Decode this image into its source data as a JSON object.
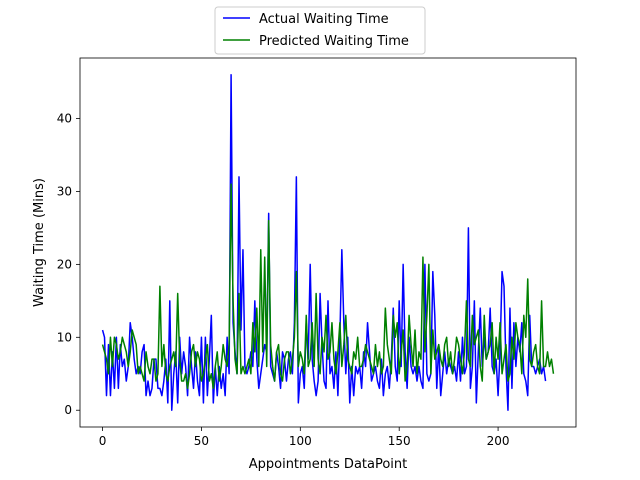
{
  "chart_data": {
    "type": "line",
    "title": "",
    "xlabel": "Appointments DataPoint",
    "ylabel": "Waiting Time (Mins)",
    "xlim": [
      -11.4,
      239.4
    ],
    "ylim": [
      -2.3,
      48.3
    ],
    "xticks": [
      0,
      50,
      100,
      150,
      200
    ],
    "yticks": [
      0,
      10,
      20,
      30,
      40
    ],
    "grid": false,
    "legend_position": "top-center",
    "series": [
      {
        "name": "Actual Waiting Time",
        "color": "#0000ff",
        "values": [
          11,
          10,
          2,
          9,
          2,
          8,
          3,
          10,
          3,
          9,
          6,
          7,
          4,
          6,
          12,
          10,
          7,
          5,
          6,
          5,
          8,
          9,
          2,
          4,
          2,
          3,
          7,
          7,
          3,
          3,
          2,
          4,
          7,
          1,
          15,
          0,
          5,
          8,
          1,
          10,
          5,
          8,
          6,
          2,
          10,
          6,
          3,
          8,
          4,
          2,
          10,
          1,
          10,
          2,
          7,
          13,
          1,
          6,
          2,
          6,
          3,
          5,
          2,
          10,
          5,
          46,
          12,
          8,
          5,
          32,
          11,
          22,
          6,
          5,
          6,
          8,
          6,
          15,
          7,
          3,
          5,
          7,
          9,
          8,
          27,
          6,
          5,
          4,
          8,
          6,
          3,
          8,
          7,
          4,
          7,
          8,
          5,
          12,
          32,
          1,
          5,
          6,
          3,
          12,
          7,
          20,
          7,
          4,
          2,
          4,
          16,
          9,
          4,
          3,
          15,
          5,
          6,
          3,
          8,
          2,
          10,
          22,
          12,
          5,
          10,
          1,
          6,
          2,
          6,
          5,
          6,
          3,
          8,
          6,
          12,
          8,
          4,
          5,
          6,
          4,
          3,
          7,
          2,
          5,
          6,
          3,
          7,
          14,
          6,
          4,
          15,
          6,
          20,
          8,
          3,
          10,
          6,
          5,
          6,
          4,
          6,
          4,
          3,
          20,
          5,
          4,
          5,
          19,
          13,
          3,
          9,
          2,
          5,
          8,
          5,
          7,
          6,
          5,
          6,
          4,
          8,
          4,
          10,
          5,
          6,
          25,
          3,
          6,
          15,
          1,
          8,
          14,
          6,
          10,
          7,
          8,
          14,
          6,
          5,
          7,
          2,
          8,
          19,
          17,
          6,
          0,
          14,
          3,
          12,
          6,
          10,
          8,
          12,
          5,
          4,
          2,
          13,
          6,
          6,
          5,
          6,
          7,
          5,
          6,
          4
        ]
      },
      {
        "name": "Predicted Waiting Time",
        "color": "#008000",
        "values": [
          9,
          8,
          7,
          5,
          10,
          6,
          10,
          9,
          7,
          8,
          10,
          9,
          8,
          6,
          8,
          11,
          10,
          9,
          5,
          6,
          5,
          4,
          8,
          6,
          5,
          7,
          7,
          4,
          5,
          17,
          6,
          9,
          5,
          4,
          6,
          7,
          8,
          6,
          16,
          7,
          4,
          4,
          5,
          3,
          5,
          8,
          9,
          6,
          8,
          7,
          4,
          5,
          7,
          9,
          4,
          5,
          3,
          6,
          8,
          4,
          6,
          9,
          7,
          6,
          9,
          31,
          15,
          7,
          5,
          16,
          5,
          6,
          5,
          6,
          7,
          5,
          12,
          8,
          14,
          6,
          22,
          8,
          21,
          6,
          26,
          9,
          6,
          4,
          8,
          9,
          5,
          4,
          7,
          8,
          8,
          5,
          7,
          10,
          19,
          6,
          8,
          7,
          5,
          13,
          6,
          7,
          12,
          6,
          16,
          7,
          5,
          10,
          8,
          13,
          7,
          8,
          12,
          7,
          5,
          8,
          12,
          6,
          9,
          13,
          7,
          6,
          5,
          8,
          7,
          10,
          6,
          6,
          7,
          9,
          8,
          7,
          6,
          5,
          9,
          6,
          8,
          5,
          6,
          14,
          9,
          7,
          5,
          13,
          10,
          12,
          5,
          8,
          11,
          4,
          6,
          13,
          9,
          6,
          11,
          5,
          8,
          7,
          21,
          8,
          13,
          20,
          5,
          11,
          7,
          8,
          9,
          7,
          6,
          9,
          10,
          6,
          8,
          5,
          7,
          10,
          9,
          7,
          5,
          8,
          15,
          7,
          6,
          13,
          9,
          10,
          11,
          6,
          4,
          13,
          7,
          8,
          9,
          12,
          5,
          10,
          7,
          12,
          5,
          7,
          9,
          4,
          5,
          10,
          7,
          12,
          10,
          9,
          5,
          13,
          10,
          18,
          7,
          6,
          8,
          9,
          6,
          5,
          15,
          6,
          6,
          8,
          6,
          7,
          5
        ]
      }
    ]
  }
}
